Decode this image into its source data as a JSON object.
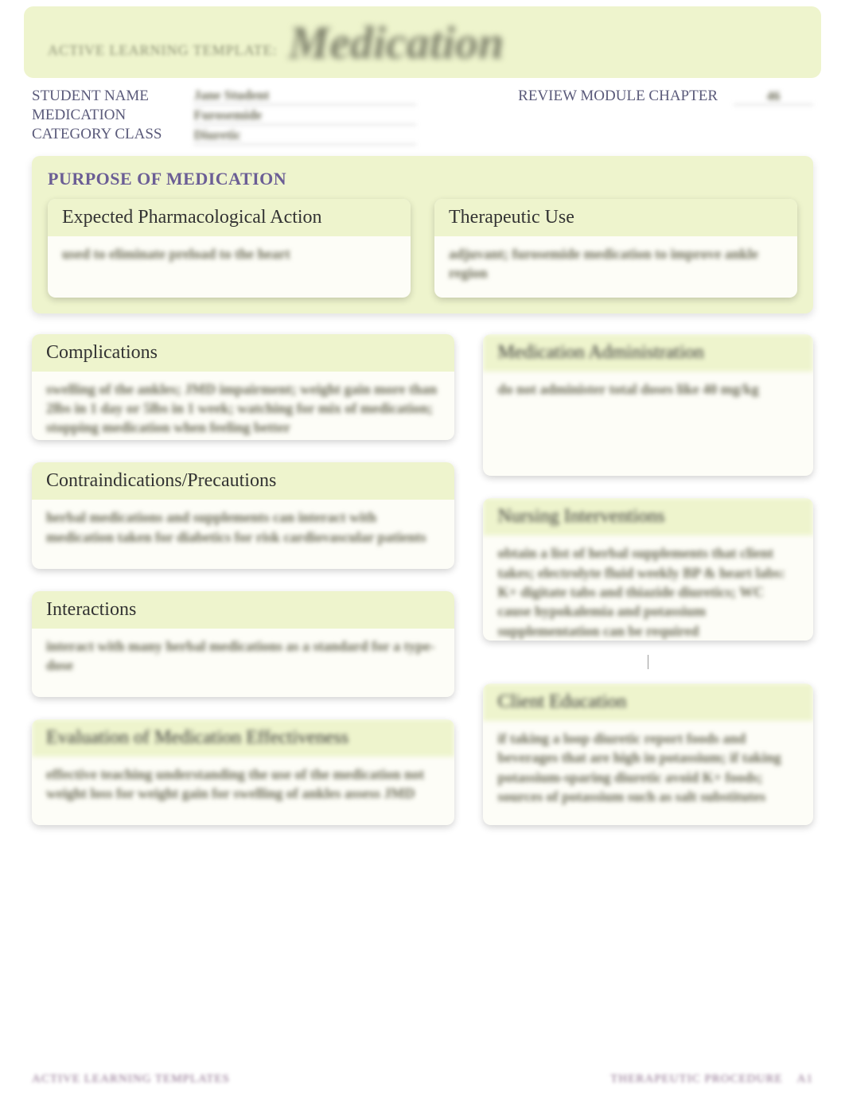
{
  "colors": {
    "banner_bg": "#eef4cd",
    "card_bg": "#fdfdf7",
    "heading_purple": "#6b5e95",
    "label_slate": "#5a5a7a",
    "body_olive": "#6a6a55",
    "muted": "#8a8f72"
  },
  "banner": {
    "small": "ACTIVE LEARNING TEMPLATE:",
    "big": "Medication"
  },
  "meta": {
    "labels": {
      "student": "STUDENT NAME",
      "medication": "MEDICATION",
      "category": "CATEGORY CLASS"
    },
    "values": {
      "student": "Jane Student",
      "medication": "Furosemide",
      "category": "Diuretic"
    },
    "review_label": "REVIEW MODULE CHAPTER",
    "chapter": "46"
  },
  "purpose": {
    "title": "PURPOSE OF MEDICATION",
    "action": {
      "header": "Expected Pharmacological Action",
      "body": "used to eliminate preload to the heart"
    },
    "use": {
      "header": "Therapeutic Use",
      "body": "adjuvant; furosemide medication to improve ankle region"
    }
  },
  "left": {
    "complications": {
      "header": "Complications",
      "body": "swelling of the ankles; JMD impairment; weight gain more than 2lbs in 1 day or 5lbs in 1 week; watching for mix of medication; stopping medication when feeling better"
    },
    "contra": {
      "header": "Contraindications/Precautions",
      "body": "herbal medications and supplements can interact with medication taken for diabetics for risk cardiovascular patients"
    },
    "interactions": {
      "header": "Interactions",
      "body": "interact with many herbal medications as a standard for a type-dose"
    },
    "eval": {
      "header": "Evaluation of Medication Effectiveness",
      "body": "effective teaching understanding the use of the medication not weight loss for weight gain for swelling of ankles assess JMD"
    }
  },
  "right": {
    "admin": {
      "header": "Medication Administration",
      "body": "do not administer total doses like 40 mg/kg"
    },
    "nursing": {
      "header": "Nursing Interventions",
      "body": "obtain a list of herbal supplements that client takes; electrolyte fluid weekly BP & heart labs: K+ digitate tabs and thiazide diuretics; WC cause hypokalemia and potassium supplementation can be required"
    },
    "client": {
      "header": "Client Education",
      "body": "if taking a loop diuretic report foods and beverages that are high in potassium; if taking potassium-sparing diuretic avoid K+ foods; sources of potassium such as salt substitutes"
    }
  },
  "footer": {
    "left": "ACTIVE LEARNING TEMPLATES",
    "right_text": "THERAPEUTIC PROCEDURE",
    "right_page": "A1"
  }
}
